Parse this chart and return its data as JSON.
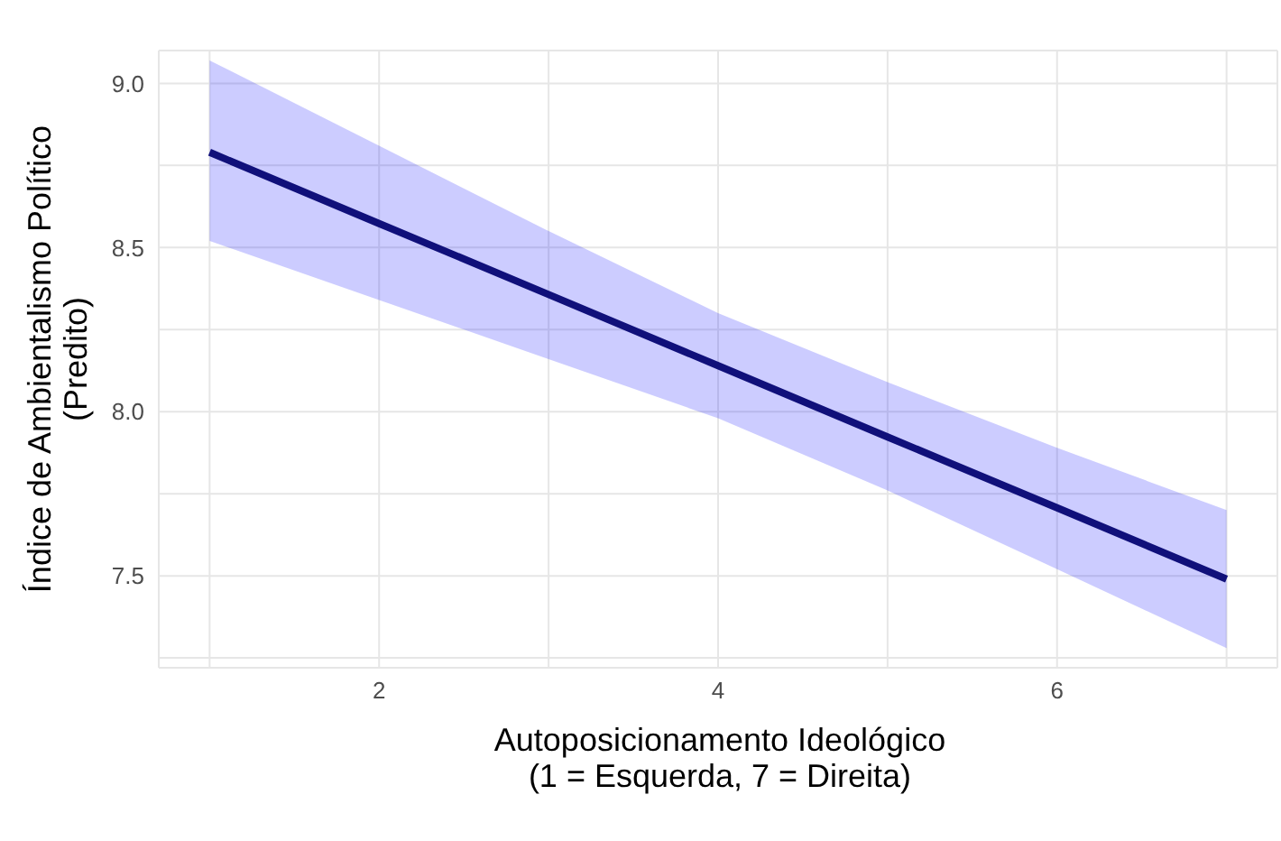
{
  "chart_data": {
    "type": "line",
    "xlabel": "Autoposicionamento Ideológico\n(1 = Esquerda, 7 = Direita)",
    "ylabel": "Índice de Ambientalismo Político\n(Predito)",
    "x": [
      1,
      2,
      3,
      4,
      5,
      6,
      7
    ],
    "series": [
      {
        "color": "#10107a",
        "values": [
          8.79,
          8.573,
          8.357,
          8.14,
          7.923,
          7.707,
          7.49
        ],
        "lower": [
          8.52,
          8.34,
          8.16,
          7.98,
          7.76,
          7.52,
          7.28
        ],
        "upper": [
          9.07,
          8.81,
          8.55,
          8.3,
          8.09,
          7.89,
          7.7
        ]
      }
    ],
    "xlim": [
      0.7,
      7.3
    ],
    "xticks": [
      {
        "value": 1,
        "label": null
      },
      2,
      {
        "value": 3,
        "label": null
      },
      4,
      {
        "value": 5,
        "label": null
      },
      6,
      {
        "value": 7,
        "label": null
      }
    ],
    "ylim": [
      7.22,
      9.1
    ],
    "yticks": [
      {
        "value": 7.25,
        "label": null
      },
      {
        "value": 7.5,
        "label": "7.5"
      },
      {
        "value": 7.75,
        "label": null
      },
      {
        "value": 8,
        "label": "8.0"
      },
      {
        "value": 8.25,
        "label": null
      },
      {
        "value": 8.5,
        "label": "8.5"
      },
      {
        "value": 8.75,
        "label": null
      },
      {
        "value": 9,
        "label": "9.0"
      }
    ],
    "grid": true,
    "marker": "none",
    "line_style": "solid",
    "legend": false
  }
}
